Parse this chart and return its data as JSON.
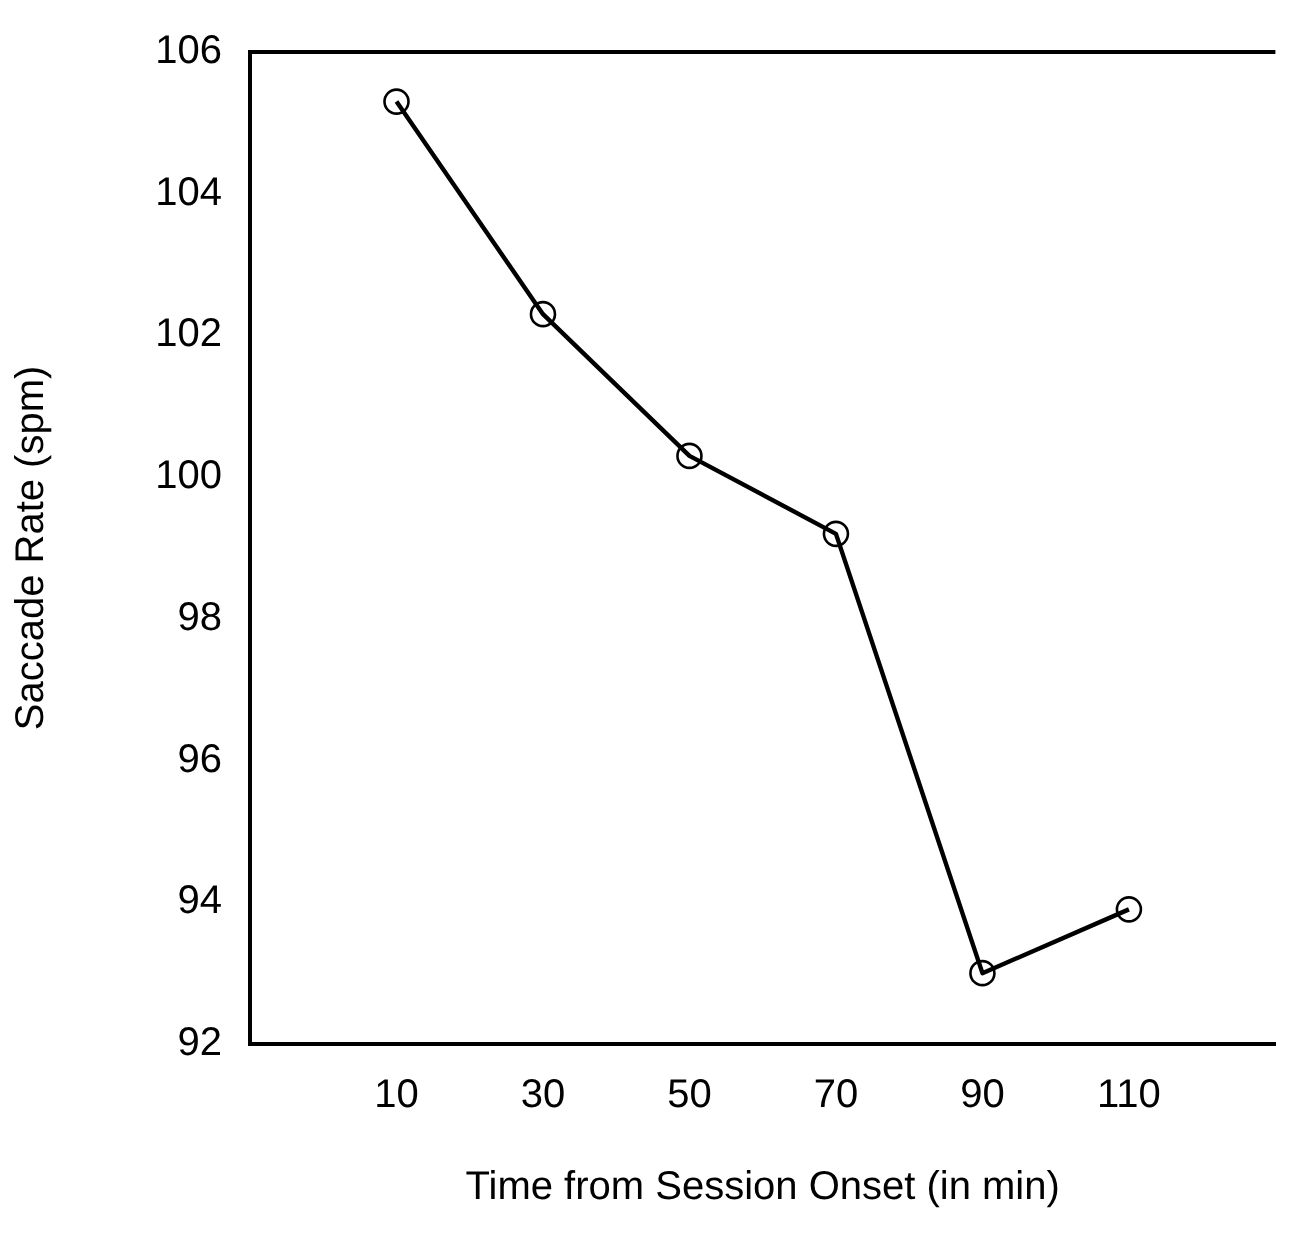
{
  "chart_data": {
    "type": "line",
    "xlabel": "Time from Session Onset (in min)",
    "ylabel": "Saccade Rate (spm)",
    "x": [
      10,
      30,
      50,
      70,
      90,
      110
    ],
    "series": [
      {
        "color": "#000000",
        "values": [
          105.3,
          102.3,
          100.3,
          99.2,
          93.0,
          93.9
        ]
      }
    ],
    "xlim": [
      -10,
      130
    ],
    "xticks": [
      10,
      30,
      50,
      70,
      90,
      110
    ],
    "ylim": [
      92,
      106
    ],
    "yticks": [
      92,
      94,
      96,
      98,
      100,
      102,
      104,
      106
    ],
    "grid": false,
    "legend": false,
    "marker": "circle",
    "line_style": "solid"
  }
}
